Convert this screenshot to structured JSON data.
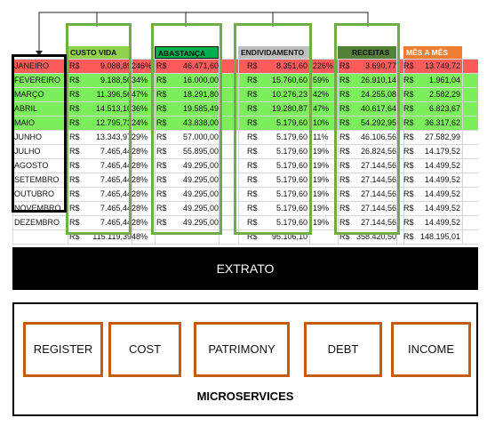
{
  "sheet": {
    "headers": {
      "custo_vida": "CUSTO VIDA",
      "abastanca": "ABASTANÇA",
      "endividamento": "ENDIVIDAMENTO",
      "receitas": "RECEITAS",
      "mes_a_mes": "MÊS A MÊS"
    },
    "currency": "R$",
    "rows": [
      {
        "month": "JANEIRO",
        "custo": "9.088,89",
        "pct1": "246%",
        "abast": "46.471,60",
        "endiv": "8.351,60",
        "pct2": "226%",
        "receita": "3.690,77",
        "mes": "13.749,72"
      },
      {
        "month": "FEVEREIRO",
        "custo": "9.188,50",
        "pct1": "34%",
        "abast": "16.000,00",
        "endiv": "15.760,60",
        "pct2": "59%",
        "receita": "26.910,14",
        "mes": "1.961,04"
      },
      {
        "month": "MARÇO",
        "custo": "11.396,56",
        "pct1": "47%",
        "abast": "18.291,80",
        "endiv": "10.276,23",
        "pct2": "42%",
        "receita": "24.255,08",
        "mes": "2.582,29"
      },
      {
        "month": "ABRIL",
        "custo": "14.513,10",
        "pct1": "36%",
        "abast": "19.585,49",
        "endiv": "19.280,87",
        "pct2": "47%",
        "receita": "40.617,64",
        "mes": "6.823,67"
      },
      {
        "month": "MAIO",
        "custo": "12.795,73",
        "pct1": "24%",
        "abast": "43.838,00",
        "endiv": "5.179,60",
        "pct2": "10%",
        "receita": "54.292,95",
        "mes": "36.317,62"
      },
      {
        "month": "JUNHO",
        "custo": "13.343,97",
        "pct1": "29%",
        "abast": "57.000,00",
        "endiv": "5.179,60",
        "pct2": "11%",
        "receita": "46.106,56",
        "mes": "27.582,99"
      },
      {
        "month": "JULHO",
        "custo": "7.465,44",
        "pct1": "28%",
        "abast": "55.895,00",
        "endiv": "5.179,60",
        "pct2": "19%",
        "receita": "26.824,56",
        "mes": "14.179,52"
      },
      {
        "month": "AGOSTO",
        "custo": "7.465,44",
        "pct1": "28%",
        "abast": "49.295,00",
        "endiv": "5.179,60",
        "pct2": "19%",
        "receita": "27.144,56",
        "mes": "14.499,52"
      },
      {
        "month": "SETEMBRO",
        "custo": "7.465,44",
        "pct1": "28%",
        "abast": "49.295,00",
        "endiv": "5.179,60",
        "pct2": "19%",
        "receita": "27.144,56",
        "mes": "14.499,52"
      },
      {
        "month": "OUTUBRO",
        "custo": "7.465,44",
        "pct1": "28%",
        "abast": "49.295,00",
        "endiv": "5.179,60",
        "pct2": "19%",
        "receita": "27.144,56",
        "mes": "14.499,52"
      },
      {
        "month": "NOVEMBRO",
        "custo": "7.465,44",
        "pct1": "28%",
        "abast": "49.295,00",
        "endiv": "5.179,60",
        "pct2": "19%",
        "receita": "27.144,56",
        "mes": "14.499,52"
      },
      {
        "month": "DEZEMBRO",
        "custo": "7.465,44",
        "pct1": "28%",
        "abast": "49.295,00",
        "endiv": "5.179,60",
        "pct2": "19%",
        "receita": "27.144,56",
        "mes": "14.499,52"
      }
    ],
    "totals": {
      "custo": "115.119,39",
      "pct1": "48%",
      "endiv": "95.106,10",
      "receita": "358.420,50",
      "mes": "148.195,01"
    }
  },
  "colors": {
    "header_custo": "#92d050",
    "header_abast": "#00b050",
    "header_endiv": "#bfbfbf",
    "header_receitas": "#538135",
    "header_mes": "#ed7d31",
    "row_red": "#ff5b5b",
    "row_green": "#7ced5b",
    "group_box": "#70ad47",
    "service_box": "#c55a11"
  },
  "extrato": {
    "label": "EXTRATO"
  },
  "microservices": {
    "label": "MICROSERVICES",
    "services": [
      {
        "name": "REGISTER",
        "icon": "service-box"
      },
      {
        "name": "COST",
        "icon": "service-box"
      },
      {
        "name": "PATRIMONY",
        "icon": "service-box"
      },
      {
        "name": "DEBT",
        "icon": "service-box"
      },
      {
        "name": "INCOME",
        "icon": "service-box"
      }
    ]
  }
}
